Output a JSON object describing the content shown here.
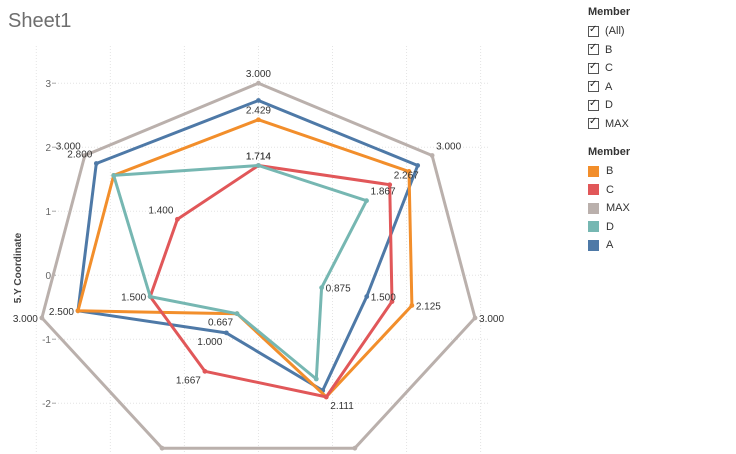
{
  "sheet": {
    "title": "Sheet1"
  },
  "filter_legend": {
    "title": "Member",
    "items": [
      {
        "label": "(All)",
        "checked": true
      },
      {
        "label": "B",
        "checked": true
      },
      {
        "label": "C",
        "checked": true
      },
      {
        "label": "A",
        "checked": true
      },
      {
        "label": "D",
        "checked": true
      },
      {
        "label": "MAX",
        "checked": true
      }
    ]
  },
  "color_legend": {
    "title": "Member",
    "items": [
      {
        "label": "B",
        "color": "#f28e2b"
      },
      {
        "label": "C",
        "color": "#e15759"
      },
      {
        "label": "MAX",
        "color": "#bab0ac"
      },
      {
        "label": "D",
        "color": "#76b7b2"
      },
      {
        "label": "A",
        "color": "#4e79a7"
      }
    ]
  },
  "chart_data": {
    "type": "radar",
    "ylabel": "5.Y Coordinate",
    "y_ticks": [
      "3",
      "2",
      "1",
      "0",
      "-1",
      "-2"
    ],
    "ylim": [
      -2.7,
      3.3
    ],
    "xlim": [
      -2.95,
      3.1
    ],
    "axes_count": 7,
    "series": [
      {
        "name": "MAX",
        "color": "#bab0ac",
        "values": [
          3.0,
          3.0,
          3.0,
          3.0,
          3.0,
          3.0,
          3.0
        ],
        "labels": [
          "3.000",
          "3.000",
          "3.000",
          "",
          "",
          "3.000",
          "3.000"
        ]
      },
      {
        "name": "A",
        "color": "#4e79a7",
        "values": [
          2.73,
          2.75,
          1.5,
          2.0,
          1.0,
          2.5,
          2.8
        ],
        "labels": [
          "",
          "",
          "1.500",
          "",
          "1.000",
          "2.500",
          "2.800"
        ]
      },
      {
        "name": "B",
        "color": "#f28e2b",
        "values": [
          2.429,
          2.6,
          2.125,
          2.111,
          0.667,
          2.5,
          2.5
        ],
        "labels": [
          "2.429",
          "",
          "2.125",
          "",
          "",
          "",
          ""
        ]
      },
      {
        "name": "C",
        "color": "#e15759",
        "values": [
          1.714,
          2.267,
          1.85,
          2.111,
          1.667,
          1.5,
          1.4
        ],
        "labels": [
          "1.714",
          "2.267",
          "",
          "2.111",
          "1.667",
          "1.500",
          "1.400"
        ]
      },
      {
        "name": "D",
        "color": "#76b7b2",
        "values": [
          1.714,
          1.867,
          0.875,
          1.8,
          0.667,
          1.5,
          2.5
        ],
        "labels": [
          "1.714",
          "1.867",
          "0.875",
          "",
          "0.667",
          "",
          ""
        ]
      }
    ]
  }
}
